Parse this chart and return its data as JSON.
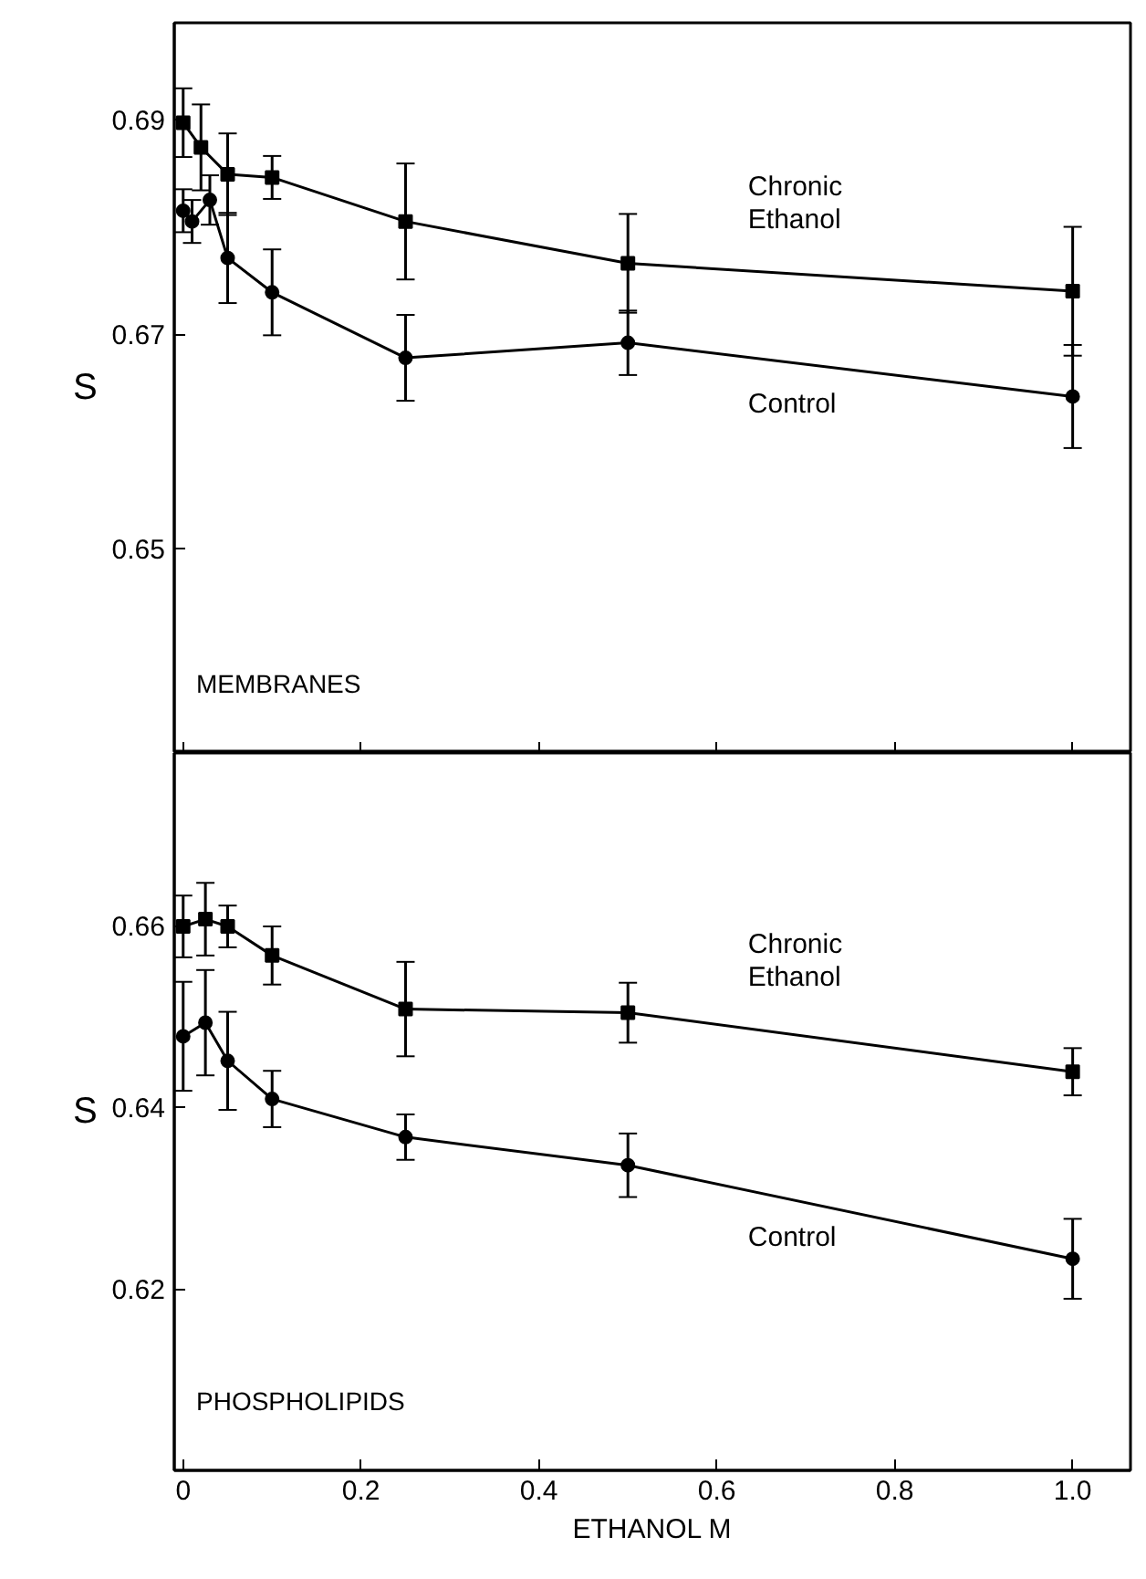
{
  "chart_data": [
    {
      "type": "line",
      "ylabel": "S",
      "annotations": [
        "MEMBRANES"
      ],
      "xlim": [
        -0.01,
        1.065
      ],
      "xticks": [
        0,
        0.2,
        0.4,
        0.6,
        0.8,
        1.0
      ],
      "ylim": [
        0.631,
        0.699
      ],
      "yticks": [
        0.65,
        0.67,
        0.69
      ],
      "tick_labels": "y",
      "grid": false,
      "series": [
        {
          "name": "Chronic\nEthanol",
          "color": "#000000",
          "marker": "square",
          "x": [
            0,
            0.02,
            0.05,
            0.1,
            0.25,
            0.5,
            1.0
          ],
          "values": [
            0.6897,
            0.6874,
            0.6849,
            0.6846,
            0.6805,
            0.6766,
            0.674
          ],
          "errors": [
            0.0032,
            0.004,
            0.0038,
            0.002,
            0.0054,
            0.0046,
            0.006
          ]
        },
        {
          "name": "Control",
          "color": "#000000",
          "marker": "circle",
          "x": [
            0,
            0.01,
            0.03,
            0.05,
            0.1,
            0.25,
            0.5,
            1.0
          ],
          "values": [
            0.6815,
            0.6805,
            0.6825,
            0.6771,
            0.6739,
            0.6678,
            0.6692,
            0.6642
          ],
          "errors": [
            0.002,
            0.002,
            0.0023,
            0.0042,
            0.004,
            0.004,
            0.003,
            0.0048
          ]
        }
      ]
    },
    {
      "type": "line",
      "ylabel": "S",
      "xlabel": "ETHANOL M",
      "annotations": [
        "PHOSPHOLIPIDS"
      ],
      "xlim": [
        -0.01,
        1.065
      ],
      "xticks": [
        0,
        0.2,
        0.4,
        0.6,
        0.8,
        {
          "value": 1.0,
          "label": "1.0"
        }
      ],
      "ylim": [
        0.6,
        0.679
      ],
      "yticks": [
        0.62,
        0.64,
        0.66
      ],
      "grid": false,
      "series": [
        {
          "name": "Chronic\nEthanol",
          "color": "#000000",
          "marker": "square",
          "x": [
            0,
            0.025,
            0.05,
            0.1,
            0.25,
            0.5,
            1.0
          ],
          "values": [
            0.6599,
            0.6607,
            0.6599,
            0.6567,
            0.6508,
            0.6504,
            0.6439
          ],
          "errors": [
            0.0034,
            0.004,
            0.0023,
            0.0032,
            0.0052,
            0.0033,
            0.0026
          ]
        },
        {
          "name": "Control",
          "color": "#000000",
          "marker": "circle",
          "x": [
            0,
            0.025,
            0.05,
            0.1,
            0.25,
            0.5,
            1.0
          ],
          "values": [
            0.6478,
            0.6493,
            0.6451,
            0.6409,
            0.6367,
            0.6336,
            0.6233
          ],
          "errors": [
            0.006,
            0.0058,
            0.0054,
            0.0031,
            0.0025,
            0.0035,
            0.0044
          ]
        }
      ]
    }
  ]
}
